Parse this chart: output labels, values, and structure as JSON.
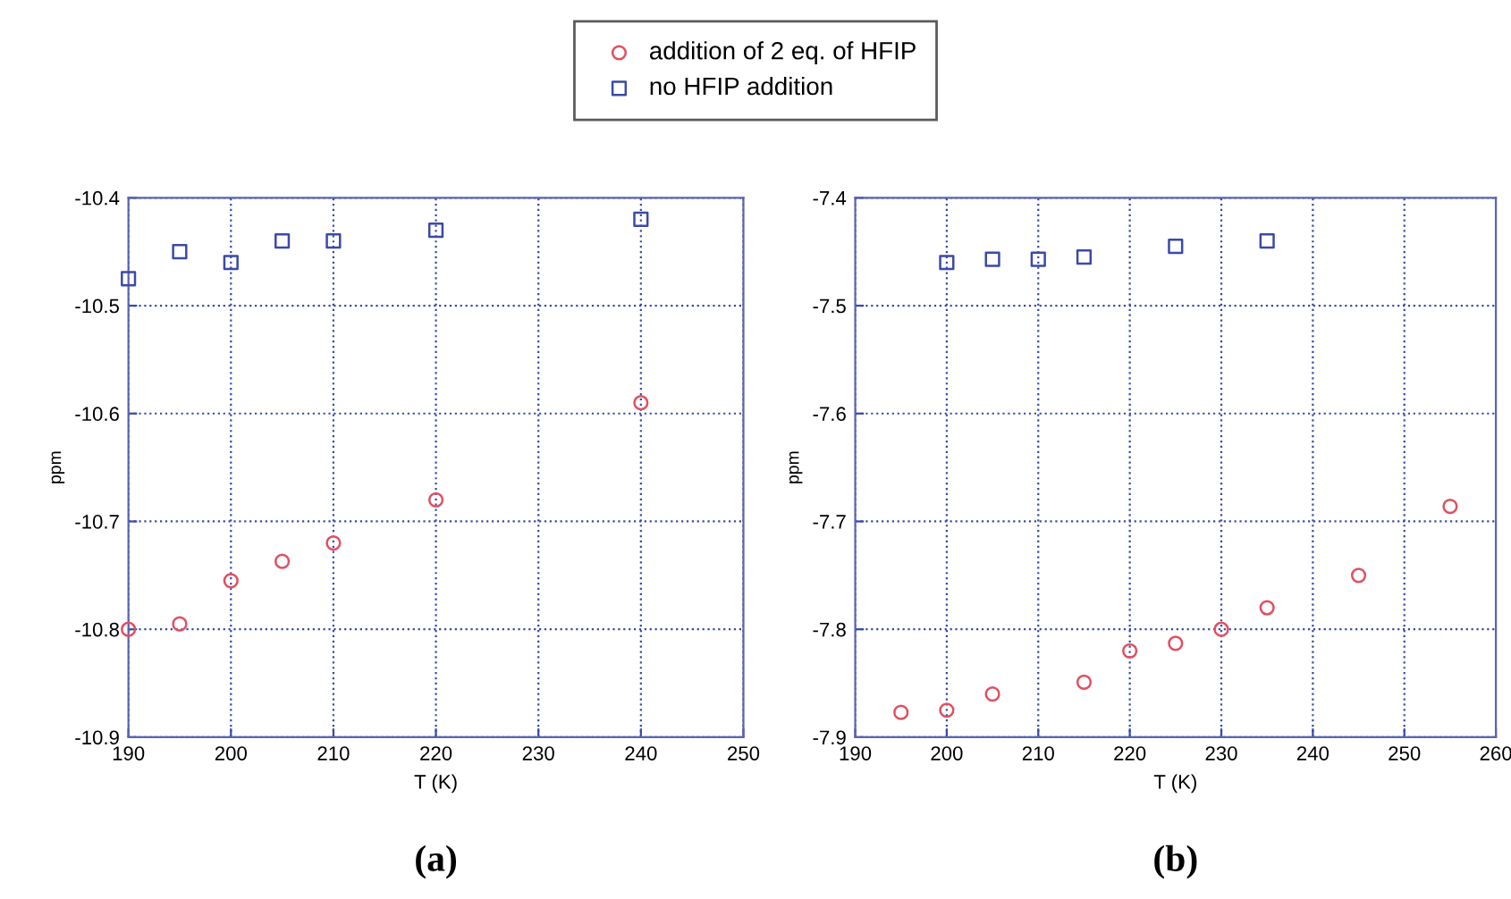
{
  "chart_data": [
    {
      "type": "scatter",
      "xlabel": "T (K)",
      "ylabel": "ppm",
      "annotations": [
        "(a)"
      ],
      "legend": "top",
      "grid": true,
      "xlim": [
        190,
        250
      ],
      "xticks": [
        190,
        200,
        210,
        220,
        230,
        240,
        250
      ],
      "ylim": [
        -10.9,
        -10.4
      ],
      "yticks": [
        -10.9,
        -10.8,
        -10.7,
        -10.6,
        -10.5,
        -10.4
      ],
      "series": [
        {
          "name": "addition of 2 eq. of HFIP",
          "color": "#e05060",
          "marker": "circle",
          "x": [
            190,
            195,
            200,
            205,
            210,
            220,
            240
          ],
          "values": [
            -10.8,
            -10.795,
            -10.755,
            -10.737,
            -10.72,
            -10.68,
            -10.59
          ]
        },
        {
          "name": "no HFIP addition",
          "color": "#3a4aa8",
          "marker": "square",
          "x": [
            190,
            195,
            200,
            205,
            210,
            220,
            240
          ],
          "values": [
            -10.475,
            -10.45,
            -10.46,
            -10.44,
            -10.44,
            -10.43,
            -10.42
          ]
        }
      ]
    },
    {
      "type": "scatter",
      "xlabel": "T (K)",
      "ylabel": "ppm",
      "annotations": [
        "(b)"
      ],
      "grid": true,
      "xlim": [
        190,
        260
      ],
      "xticks": [
        190,
        200,
        210,
        220,
        230,
        240,
        250,
        260
      ],
      "ylim": [
        -7.9,
        -7.4
      ],
      "yticks": [
        -7.9,
        -7.8,
        -7.7,
        -7.6,
        -7.5,
        -7.4
      ],
      "series": [
        {
          "color": "#e05060",
          "marker": "circle",
          "x": [
            195,
            200,
            205,
            215,
            220,
            225,
            230,
            235,
            245,
            255
          ],
          "values": [
            -7.877,
            -7.875,
            -7.86,
            -7.849,
            -7.82,
            -7.813,
            -7.8,
            -7.78,
            -7.75,
            -7.686
          ]
        },
        {
          "color": "#3a4aa8",
          "marker": "square",
          "x": [
            200,
            205,
            210,
            215,
            225,
            235
          ],
          "values": [
            -7.46,
            -7.457,
            -7.457,
            -7.455,
            -7.445,
            -7.44
          ]
        }
      ]
    }
  ]
}
